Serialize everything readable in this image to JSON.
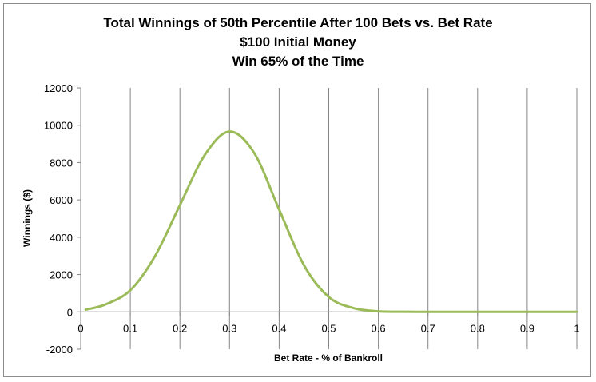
{
  "chart_data": {
    "type": "line",
    "title": [
      "Total Winnings of 50th Percentile After 100 Bets vs. Bet Rate",
      "$100 Initial Money",
      "Win 65% of the Time"
    ],
    "xlabel": "Bet Rate - % of Bankroll",
    "ylabel": "Winnings ($)",
    "xlim": [
      0,
      1
    ],
    "ylim": [
      -2000,
      12000
    ],
    "x_ticks": [
      "0",
      "0.1",
      "0.2",
      "0.3",
      "0.4",
      "0.5",
      "0.6",
      "0.7",
      "0.8",
      "0.9",
      "1"
    ],
    "y_ticks": [
      "12000",
      "10000",
      "8000",
      "6000",
      "4000",
      "2000",
      "0",
      "-2000"
    ],
    "grid": "vertical",
    "legend": "none",
    "series_color": "#9bbb59",
    "series": [
      {
        "x": [
          0.01,
          0.05,
          0.1,
          0.15,
          0.2,
          0.25,
          0.3,
          0.35,
          0.4,
          0.45,
          0.5,
          0.55,
          0.6,
          0.65,
          0.7,
          0.75,
          0.8,
          0.85,
          0.9,
          0.95,
          1.0
        ],
        "values": [
          117,
          400,
          1160,
          3000,
          5720,
          8400,
          9660,
          8500,
          5480,
          2500,
          800,
          200,
          30,
          5,
          1,
          0,
          0,
          0,
          0,
          0,
          0
        ]
      }
    ]
  }
}
